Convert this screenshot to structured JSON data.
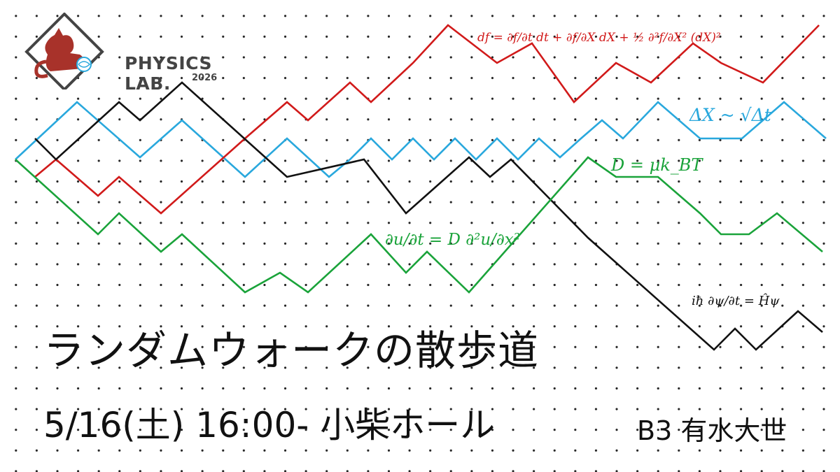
{
  "logo": {
    "text": "PHYSICS LAB.",
    "year": "2026",
    "icon": "cat-icon",
    "colors": {
      "cat": "#a8322a",
      "frame": "#444444"
    }
  },
  "equations": {
    "red": "df = ∂f/∂t dt + ∂f/∂X dX + ½ ∂²f/∂X² (dX)²",
    "blue": "ΔX ~ √Δt",
    "green_einstein": "D = μk_BT",
    "green_diffusion": "∂u/∂t = D ∂²u/∂x²",
    "black_schrodinger": "iħ ∂ψ/∂t = Ĥψ"
  },
  "title": "ランダムウォークの散歩道",
  "event": "5/16(土) 16:00- 小柴ホール",
  "speaker": "B3 有水大世",
  "colors": {
    "red": "#d11a1a",
    "blue": "#29a8dd",
    "green": "#1aa33a",
    "black": "#111111"
  }
}
